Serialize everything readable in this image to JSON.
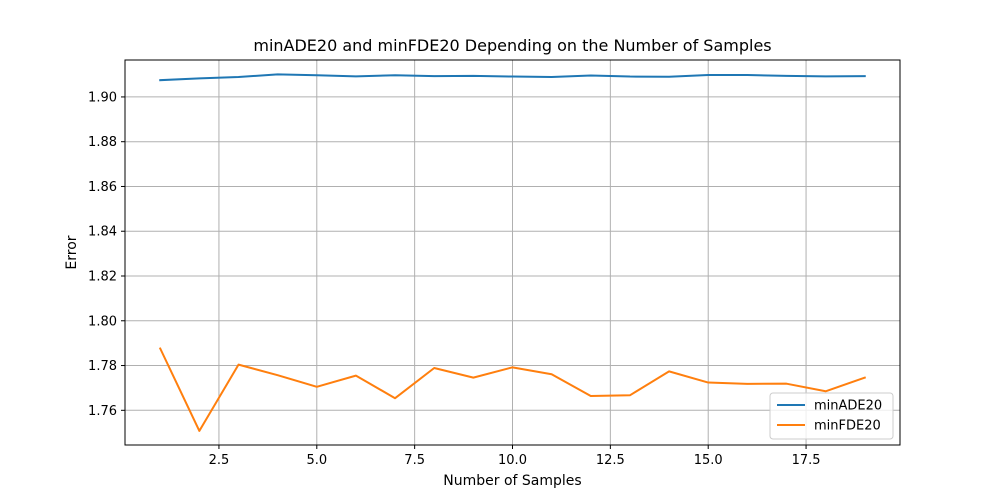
{
  "chart_data": {
    "type": "line",
    "title": "minADE20 and minFDE20 Depending on the Number of Samples",
    "xlabel": "Number of Samples",
    "ylabel": "Error",
    "xlim": [
      0.1,
      19.9
    ],
    "ylim": [
      1.7445,
      1.9165
    ],
    "xticks": [
      2.5,
      5.0,
      7.5,
      10.0,
      12.5,
      15.0,
      17.5
    ],
    "xtick_labels": [
      "2.5",
      "5.0",
      "7.5",
      "10.0",
      "12.5",
      "15.0",
      "17.5"
    ],
    "yticks": [
      1.76,
      1.78,
      1.8,
      1.82,
      1.84,
      1.86,
      1.88,
      1.9
    ],
    "ytick_labels": [
      "1.76",
      "1.78",
      "1.80",
      "1.82",
      "1.84",
      "1.86",
      "1.88",
      "1.90"
    ],
    "grid": true,
    "legend_position": "bottom-right",
    "x": [
      1,
      2,
      3,
      4,
      5,
      6,
      7,
      8,
      9,
      10,
      11,
      12,
      13,
      14,
      15,
      16,
      17,
      18,
      19
    ],
    "series": [
      {
        "name": "minADE20",
        "color": "#1f77b4",
        "values": [
          1.9075,
          1.9083,
          1.9089,
          1.9101,
          1.9097,
          1.9092,
          1.9097,
          1.9093,
          1.9094,
          1.9091,
          1.9089,
          1.9096,
          1.9091,
          1.909,
          1.9098,
          1.9098,
          1.9094,
          1.9092,
          1.9093
        ]
      },
      {
        "name": "minFDE20",
        "color": "#ff7f0e",
        "values": [
          1.7876,
          1.7508,
          1.7804,
          1.7757,
          1.7705,
          1.7755,
          1.7654,
          1.7789,
          1.7746,
          1.7792,
          1.7761,
          1.7664,
          1.7667,
          1.7774,
          1.7724,
          1.7718,
          1.7719,
          1.7685,
          1.7746
        ]
      }
    ]
  }
}
